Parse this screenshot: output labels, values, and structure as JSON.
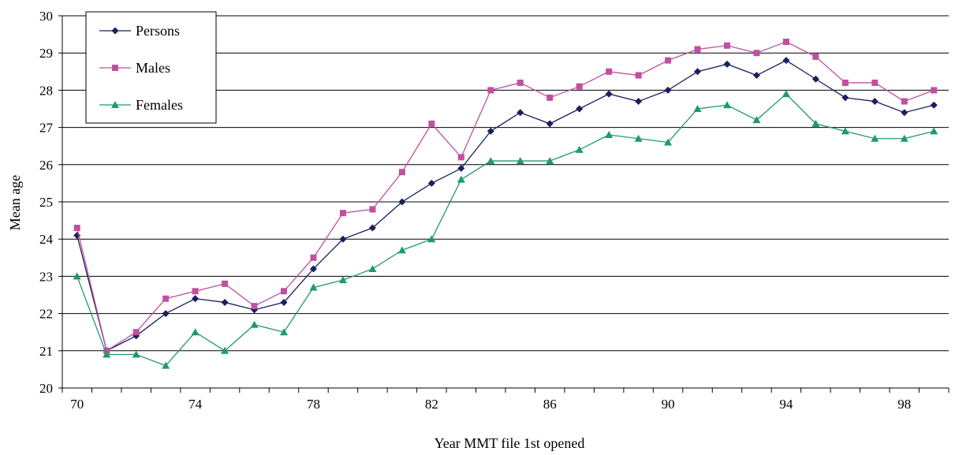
{
  "chart_data": {
    "type": "line",
    "xlabel": "Year MMT file 1st opened",
    "ylabel": "Mean age",
    "ylim": [
      20,
      30
    ],
    "yticks": [
      20,
      21,
      22,
      23,
      24,
      25,
      26,
      27,
      28,
      29,
      30
    ],
    "xlim": [
      70,
      99
    ],
    "xtick_labels": [
      "70",
      "74",
      "78",
      "82",
      "86",
      "90",
      "94",
      "98"
    ],
    "grid": "horizontal",
    "legend_position": "top-left",
    "x": [
      70,
      71,
      72,
      73,
      74,
      75,
      76,
      77,
      78,
      79,
      80,
      81,
      82,
      83,
      84,
      85,
      86,
      87,
      88,
      89,
      90,
      91,
      92,
      93,
      94,
      95,
      96,
      97,
      98,
      99
    ],
    "series": [
      {
        "name": "Persons",
        "color": "#1a1f5e",
        "marker": "diamond",
        "values": [
          24.1,
          21.0,
          21.4,
          22.0,
          22.4,
          22.3,
          22.1,
          22.3,
          23.2,
          24.0,
          24.3,
          25.0,
          25.5,
          25.9,
          26.9,
          27.4,
          27.1,
          27.5,
          27.9,
          27.7,
          28.0,
          28.5,
          28.7,
          28.4,
          28.8,
          28.3,
          27.8,
          27.7,
          27.4,
          27.6
        ]
      },
      {
        "name": "Males",
        "color": "#c0509f",
        "marker": "square",
        "values": [
          24.3,
          21.0,
          21.5,
          22.4,
          22.6,
          22.8,
          22.2,
          22.6,
          23.5,
          24.7,
          24.8,
          25.8,
          27.1,
          26.2,
          28.0,
          28.2,
          27.8,
          28.1,
          28.5,
          28.4,
          28.8,
          29.1,
          29.2,
          29.0,
          29.3,
          28.9,
          28.2,
          28.2,
          27.7,
          28.0
        ]
      },
      {
        "name": "Females",
        "color": "#1f9a6e",
        "marker": "triangle",
        "values": [
          23.0,
          20.9,
          20.9,
          20.6,
          21.5,
          21.0,
          21.7,
          21.5,
          22.7,
          22.9,
          23.2,
          23.7,
          24.0,
          25.6,
          26.1,
          26.1,
          26.1,
          26.4,
          26.8,
          26.7,
          26.6,
          27.5,
          27.6,
          27.2,
          27.9,
          27.1,
          26.9,
          26.7,
          26.7,
          26.9
        ]
      }
    ]
  }
}
